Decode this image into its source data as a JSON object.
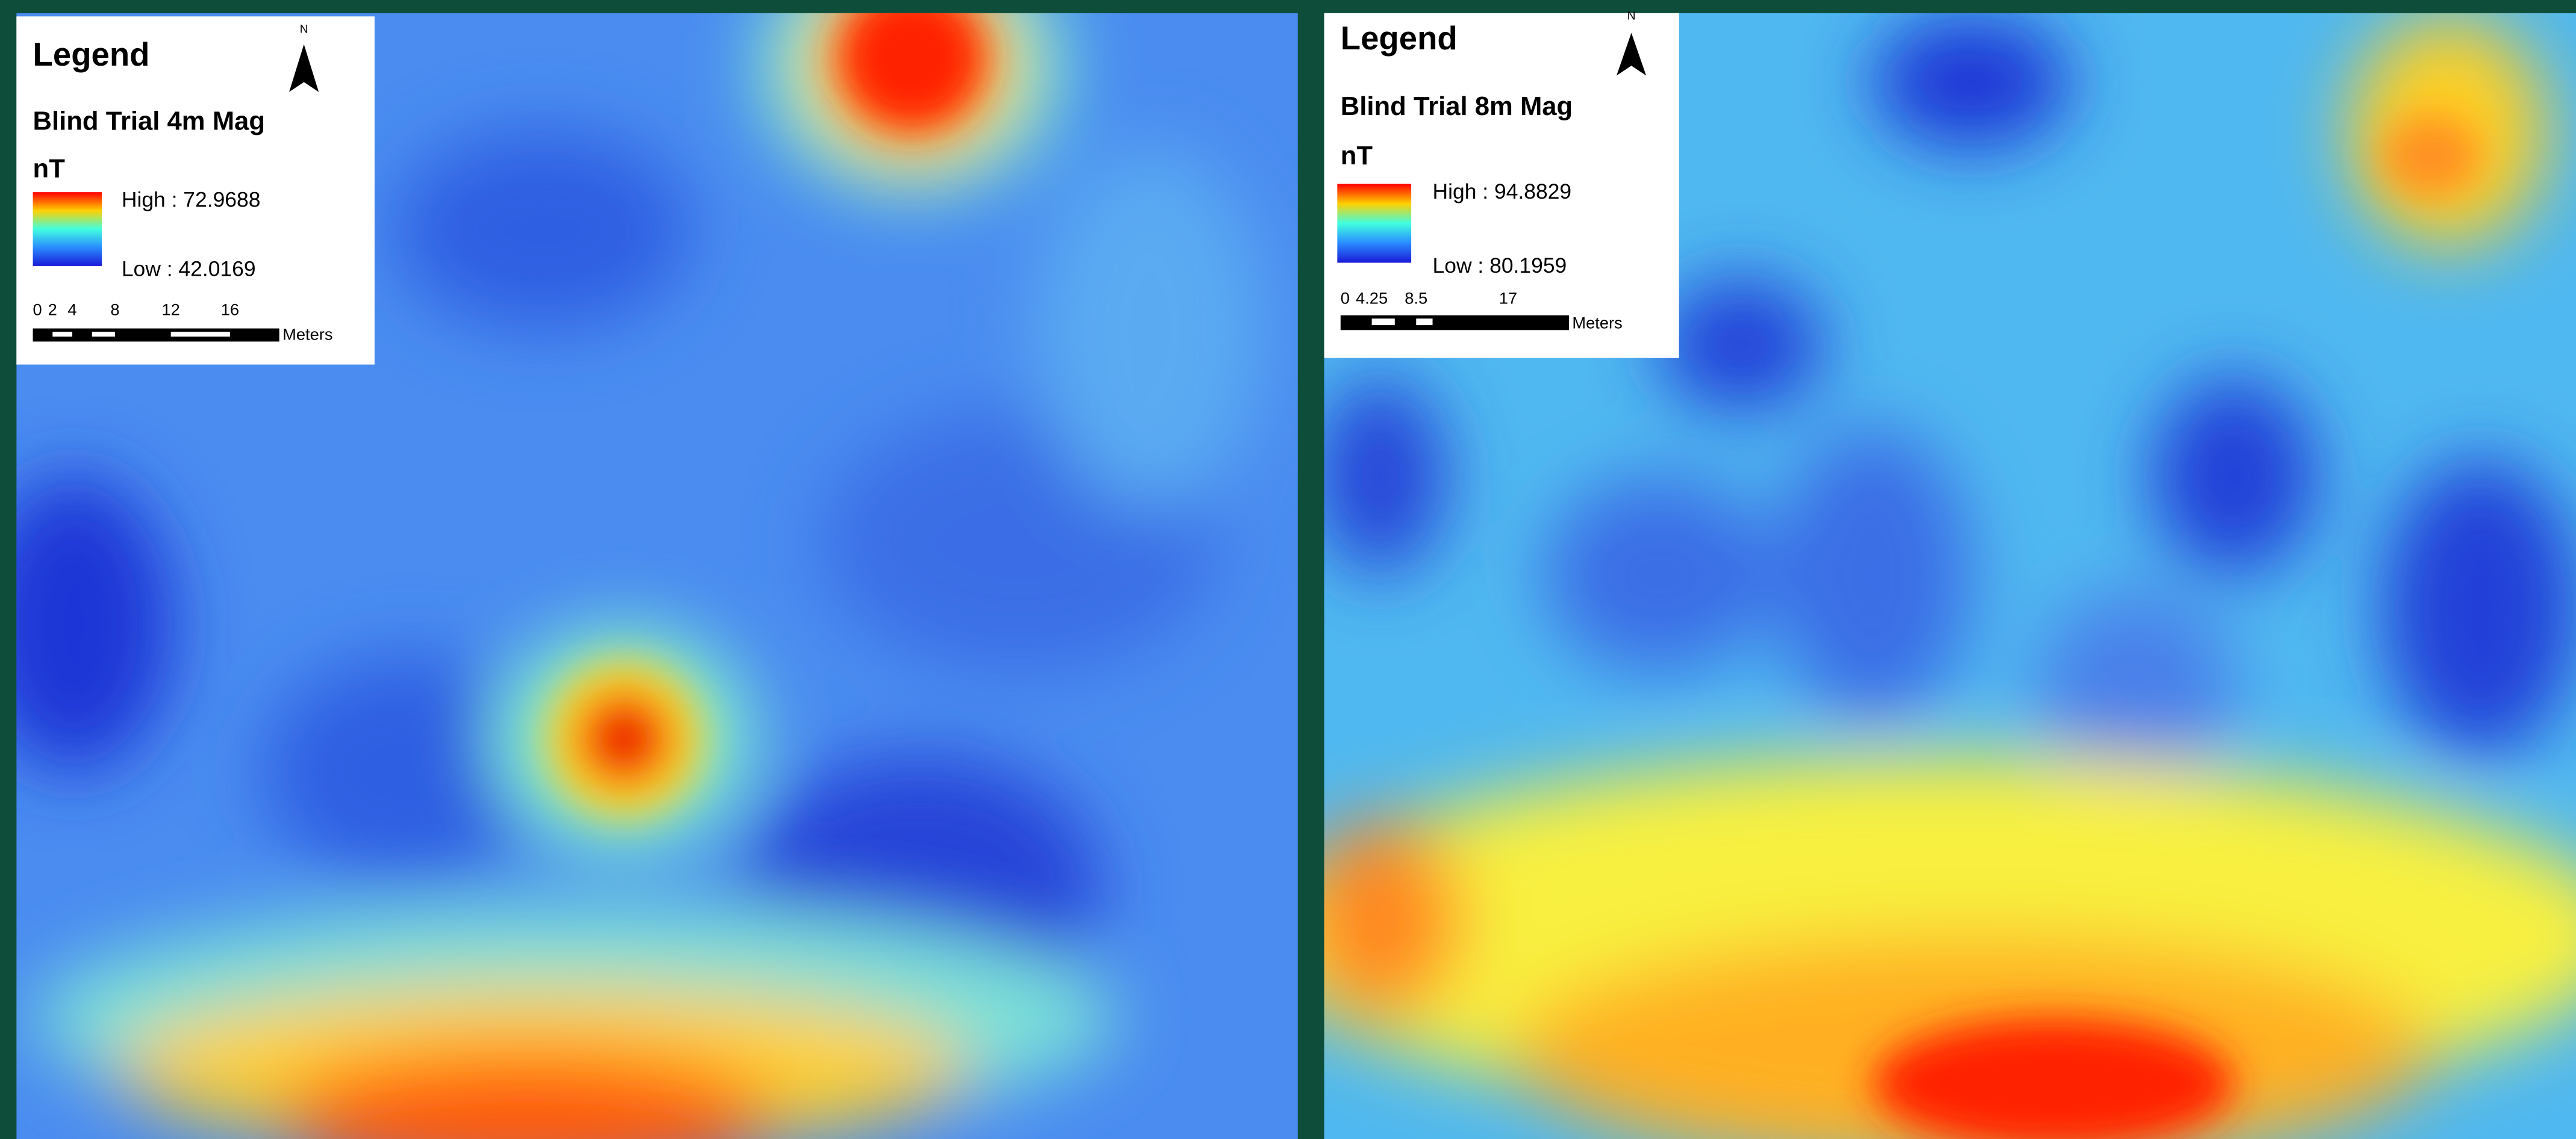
{
  "panels": [
    {
      "legend": {
        "title": "Legend",
        "north": "N",
        "layer": "Blind Trial 4m Mag",
        "unit": "nT",
        "high": "High : 72.9688",
        "low": "Low : 42.0169",
        "scale_ticks": [
          "0",
          "2",
          "4",
          "8",
          "12",
          "16"
        ],
        "scale_unit": "Meters"
      }
    },
    {
      "legend": {
        "title": "Legend",
        "north": "N",
        "layer": "Blind Trial 8m Mag",
        "unit": "nT",
        "high": "High : 94.8829",
        "low": "Low : 80.1959",
        "scale_ticks": [
          "0",
          "4.25",
          "8.5",
          "17"
        ],
        "scale_unit": "Meters"
      }
    }
  ]
}
